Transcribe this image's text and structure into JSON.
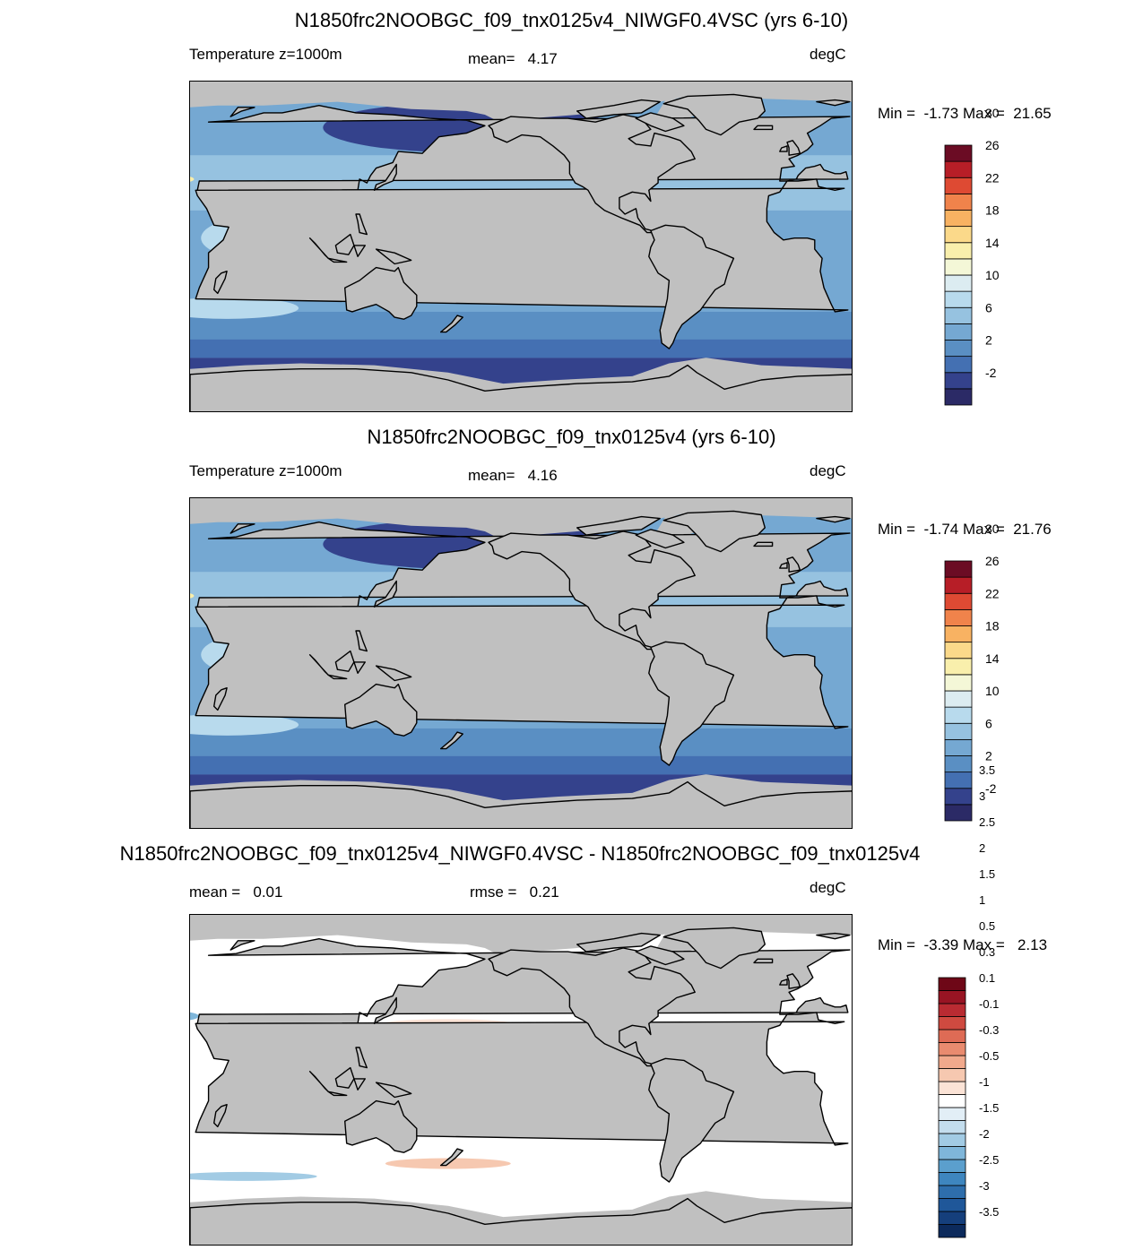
{
  "panels": [
    {
      "title": "N1850frc2NOOBGC_f09_tnx0125v4_NIWGF0.4VSC (yrs 6-10)",
      "left_label": "Temperature z=1000m",
      "center_label": "mean=",
      "center_value": "4.17",
      "units": "degC",
      "min_label": "Min =",
      "min_value": "-1.73",
      "max_label": "Max =",
      "max_value": "21.65",
      "colorbar": {
        "colors": [
          "#2b2a66",
          "#34428c",
          "#4470b2",
          "#5a8fc3",
          "#75a8d2",
          "#96c2e0",
          "#b8daed",
          "#dcecf1",
          "#f4f7d7",
          "#f9efac",
          "#fbd98a",
          "#f8b262",
          "#f0834b",
          "#de4a33",
          "#b71e27",
          "#6b0c24"
        ],
        "labels": [
          "-2",
          "2",
          "6",
          "10",
          "14",
          "18",
          "22",
          "26",
          "30"
        ]
      }
    },
    {
      "title": "N1850frc2NOOBGC_f09_tnx0125v4 (yrs 6-10)",
      "left_label": "Temperature z=1000m",
      "center_label": "mean=",
      "center_value": "4.16",
      "units": "degC",
      "min_label": "Min =",
      "min_value": "-1.74",
      "max_label": "Max =",
      "max_value": "21.76",
      "colorbar": {
        "colors": [
          "#2b2a66",
          "#34428c",
          "#4470b2",
          "#5a8fc3",
          "#75a8d2",
          "#96c2e0",
          "#b8daed",
          "#dcecf1",
          "#f4f7d7",
          "#f9efac",
          "#fbd98a",
          "#f8b262",
          "#f0834b",
          "#de4a33",
          "#b71e27",
          "#6b0c24"
        ],
        "labels": [
          "-2",
          "2",
          "6",
          "10",
          "14",
          "18",
          "22",
          "26",
          "30"
        ]
      }
    },
    {
      "title": "N1850frc2NOOBGC_f09_tnx0125v4_NIWGF0.4VSC - N1850frc2NOOBGC_f09_tnx0125v4",
      "left_label": "mean =",
      "left_value": "0.01",
      "center_label": "rmse =",
      "center_value": "0.21",
      "units": "degC",
      "min_label": "Min =",
      "min_value": "-3.39",
      "max_label": "Max =",
      "max_value": "2.13",
      "colorbar": {
        "colors": [
          "#0c2a5c",
          "#153f7c",
          "#1f5799",
          "#2e6eac",
          "#3e86bf",
          "#5b9fcd",
          "#7fb6da",
          "#a2cbe4",
          "#c3dded",
          "#e2eef6",
          "#ffffff",
          "#fbe3d6",
          "#f6c8b0",
          "#f1a98c",
          "#e98b6f",
          "#de6b55",
          "#cf4a40",
          "#b92b32",
          "#981423",
          "#6e0717"
        ],
        "labels": [
          "-3.5",
          "-3",
          "-2.5",
          "-2",
          "-1.5",
          "-1",
          "-0.5",
          "-0.3",
          "-0.1",
          "0.1",
          "0.3",
          "0.5",
          "1",
          "1.5",
          "2",
          "2.5",
          "3",
          "3.5"
        ]
      }
    }
  ]
}
